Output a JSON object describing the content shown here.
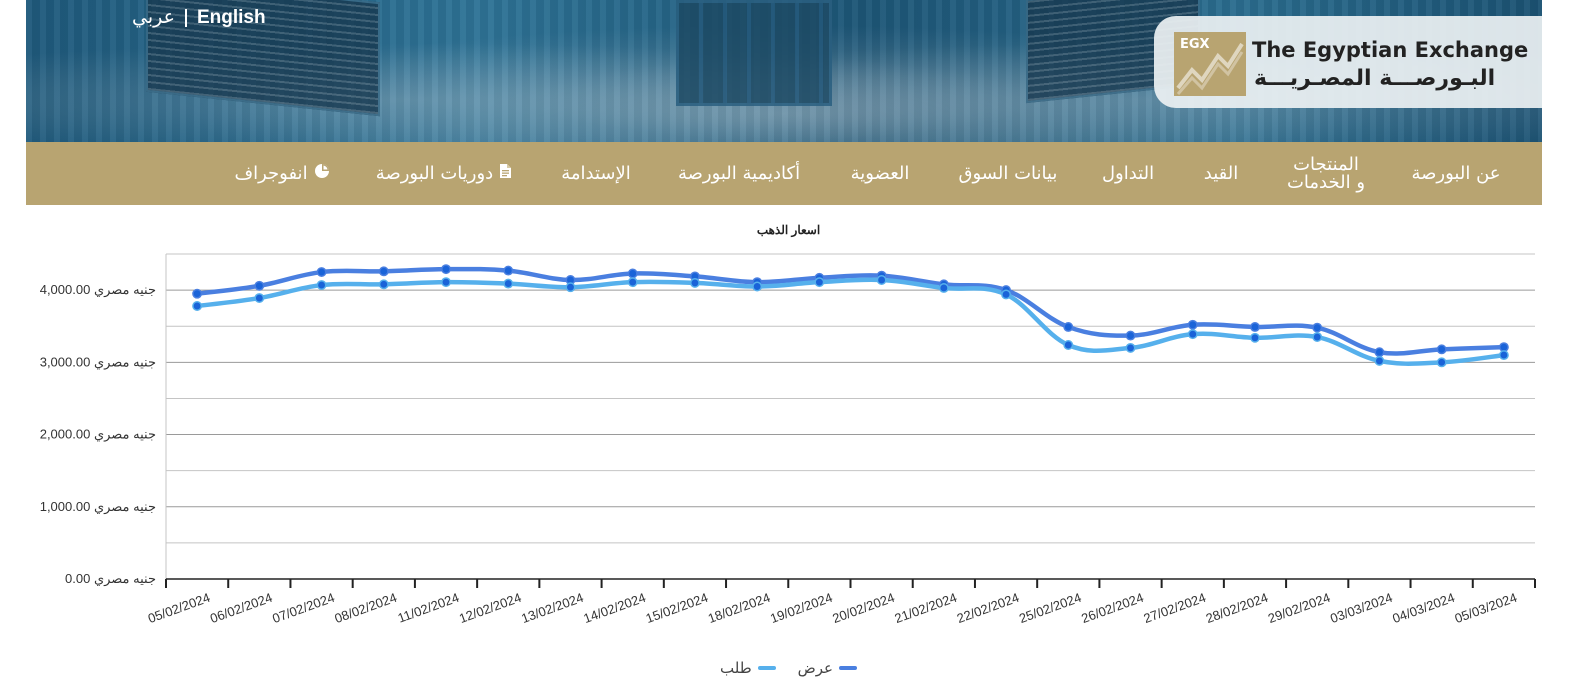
{
  "header": {
    "lang_english": "English",
    "lang_arabic": "عربي",
    "logo_mark_text": "EGX",
    "logo_english": "The Egyptian Exchange",
    "logo_arabic": "البـورصـــة المصـريـــة"
  },
  "nav": {
    "items": [
      {
        "label": "عن البورصة"
      },
      {
        "label_line1": "المنتجات",
        "label_line2": "و الخدمات"
      },
      {
        "label": "القيد"
      },
      {
        "label": "التداول"
      },
      {
        "label": "بيانات السوق"
      },
      {
        "label": "العضوية"
      },
      {
        "label": "أكاديمية البورصة"
      },
      {
        "label": "الإستدامة"
      },
      {
        "label": "دوريات البورصة",
        "icon": "document-icon"
      },
      {
        "label": "انفوجراف",
        "icon": "pie-chart-icon"
      }
    ]
  },
  "colors": {
    "nav_background": "#b8a471",
    "header_blue": "#1f5a7c",
    "series_offer": "#4a7fe0",
    "series_bid": "#56b0ec",
    "marker": "#1a63d8"
  },
  "chart_data": {
    "type": "line",
    "title": "اسعار الذهب",
    "y_unit": "جنيه مصري",
    "y_tick_labels": [
      "0.00 جنيه مصري",
      "1,000.00 جنيه مصري",
      "2,000.00 جنيه مصري",
      "3,000.00 جنيه مصري",
      "4,000.00 جنيه مصري"
    ],
    "ylim": [
      0,
      4500
    ],
    "y_ticks": [
      0,
      1000,
      2000,
      3000,
      4000
    ],
    "grid": true,
    "legend_position": "bottom",
    "categories": [
      "05/02/2024",
      "06/02/2024",
      "07/02/2024",
      "08/02/2024",
      "11/02/2024",
      "12/02/2024",
      "13/02/2024",
      "14/02/2024",
      "15/02/2024",
      "18/02/2024",
      "19/02/2024",
      "20/02/2024",
      "21/02/2024",
      "22/02/2024",
      "25/02/2024",
      "26/02/2024",
      "27/02/2024",
      "28/02/2024",
      "29/02/2024",
      "03/03/2024",
      "04/03/2024",
      "05/03/2024"
    ],
    "series": [
      {
        "name": "عرض",
        "values": [
          3950,
          4060,
          4250,
          4260,
          4290,
          4270,
          4140,
          4230,
          4190,
          4110,
          4170,
          4200,
          4080,
          4000,
          3490,
          3370,
          3520,
          3490,
          3480,
          3140,
          3180,
          3210
        ]
      },
      {
        "name": "طلب",
        "values": [
          3780,
          3890,
          4070,
          4080,
          4110,
          4090,
          4040,
          4110,
          4100,
          4050,
          4110,
          4140,
          4030,
          3940,
          3240,
          3200,
          3390,
          3340,
          3350,
          3020,
          3000,
          3100
        ]
      }
    ]
  }
}
